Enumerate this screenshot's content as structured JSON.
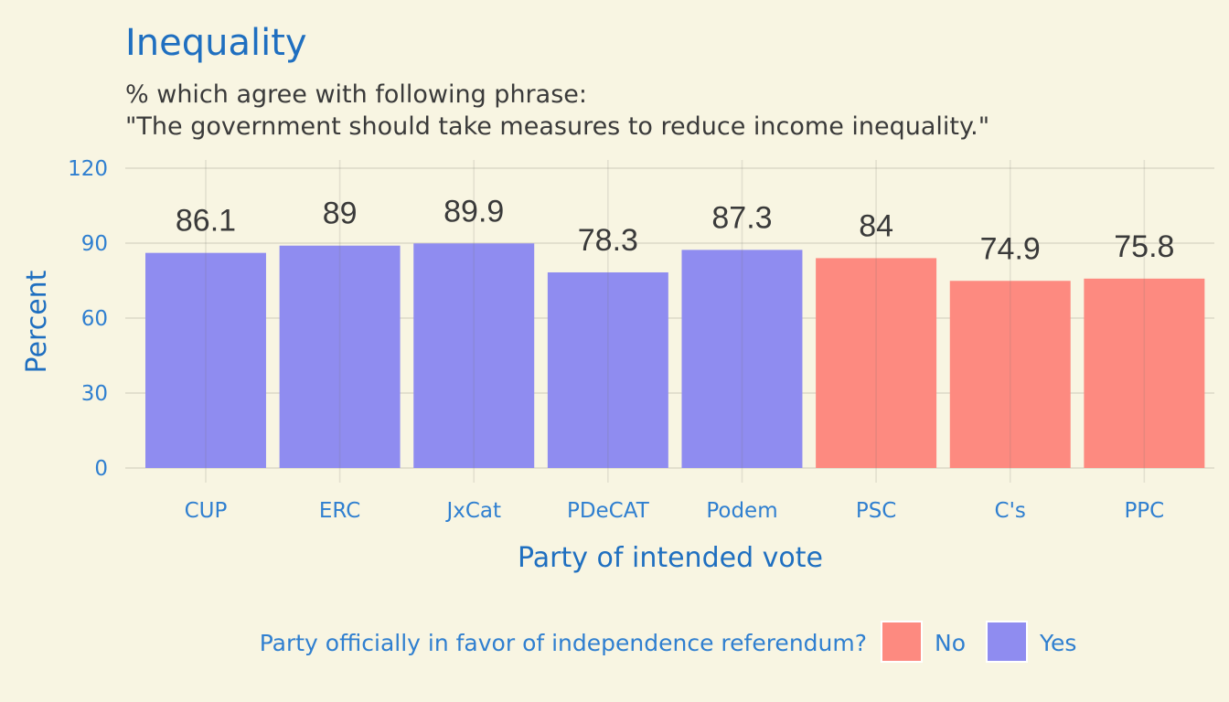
{
  "chart_data": {
    "type": "bar",
    "title": "Inequality",
    "subtitle_lines": [
      "% which agree with following phrase:",
      "\"The government should take measures to reduce income inequality.\""
    ],
    "xlabel": "Party of intended vote",
    "ylabel": "Percent",
    "ylim": [
      0,
      120
    ],
    "yticks": [
      0,
      30,
      60,
      90,
      120
    ],
    "categories": [
      "CUP",
      "ERC",
      "JxCat",
      "PDeCAT",
      "Podem",
      "PSC",
      "C's",
      "PPC"
    ],
    "values": [
      86.1,
      89,
      89.9,
      78.3,
      87.3,
      84,
      74.9,
      75.8
    ],
    "value_labels": [
      "86.1",
      "89",
      "89.9",
      "78.3",
      "87.3",
      "84",
      "74.9",
      "75.8"
    ],
    "group": [
      "Yes",
      "Yes",
      "Yes",
      "Yes",
      "Yes",
      "No",
      "No",
      "No"
    ],
    "colors": {
      "Yes": "#8f8cf0",
      "No": "#fd8a80"
    },
    "legend": {
      "title": "Party officially in favor of independence referendum?",
      "entries": [
        "No",
        "Yes"
      ],
      "position": "bottom"
    },
    "grid": true
  }
}
